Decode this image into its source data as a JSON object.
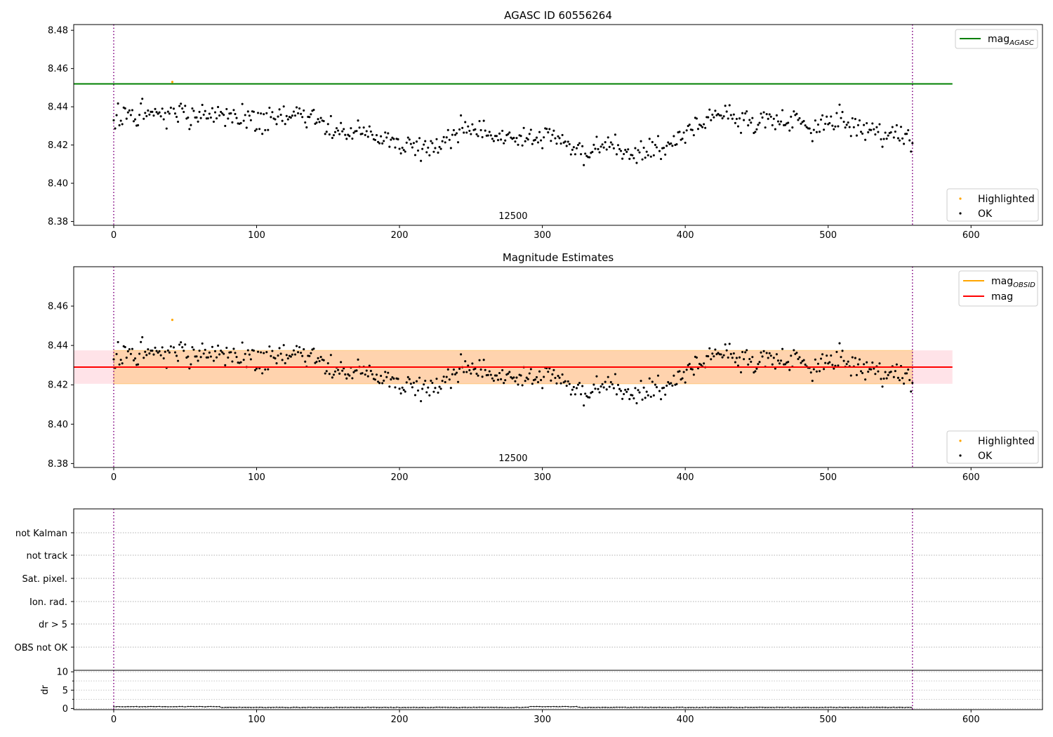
{
  "figure": {
    "title": "AGASC ID 60556264"
  },
  "chart_data": [
    {
      "type": "scatter",
      "title": "AGASC ID 60556264",
      "xlim": [
        -28,
        650
      ],
      "ylim": [
        8.378,
        8.483
      ],
      "xticks": [
        "0",
        "100",
        "200",
        "300",
        "400",
        "500",
        "600"
      ],
      "yticks": [
        "8.38",
        "8.40",
        "8.42",
        "8.44",
        "8.46",
        "8.48"
      ],
      "obsid_label": "12500",
      "obsid_boundaries": [
        0,
        559
      ],
      "reference_line": {
        "name": "mag$_{AGASC}$",
        "legend_main": "mag",
        "legend_sub": "AGASC",
        "value": 8.452,
        "x_range": [
          -28,
          587
        ],
        "color": "#008000"
      },
      "legend_points": [
        "Highlighted",
        "OK"
      ],
      "highlighted": [
        {
          "x": 41,
          "y": 8.453
        }
      ],
      "series": [
        {
          "name": "OK",
          "color": "#000000"
        }
      ]
    },
    {
      "type": "scatter",
      "title": "Magnitude Estimates",
      "xlim": [
        -28,
        650
      ],
      "ylim": [
        8.378,
        8.48
      ],
      "xticks": [
        "0",
        "100",
        "200",
        "300",
        "400",
        "500",
        "600"
      ],
      "yticks": [
        "8.38",
        "8.40",
        "8.42",
        "8.44",
        "8.46"
      ],
      "obsid_label": "12500",
      "obsid_boundaries": [
        0,
        559
      ],
      "lines": [
        {
          "name": "mag$_{OBSID}$",
          "legend_main": "mag",
          "legend_sub": "OBSID",
          "value": 8.429,
          "x_range": [
            0,
            559
          ],
          "color": "#ffa500"
        },
        {
          "name": "mag",
          "legend_main": "mag",
          "legend_sub": "",
          "value": 8.429,
          "x_range": [
            -28,
            587
          ],
          "color": "#ff0000"
        }
      ],
      "bands": [
        {
          "low": 8.4205,
          "high": 8.4375,
          "x_range": [
            -28,
            587
          ],
          "color": "#ffc0cb"
        },
        {
          "low": 8.4205,
          "high": 8.4375,
          "x_range": [
            0,
            559
          ],
          "color": "#ffa500"
        }
      ],
      "legend_points": [
        "Highlighted",
        "OK"
      ],
      "highlighted": [
        {
          "x": 41,
          "y": 8.453
        }
      ],
      "series": [
        {
          "name": "OK",
          "color": "#000000"
        }
      ]
    },
    {
      "type": "scatter",
      "title": "",
      "flag_labels": [
        "not Kalman",
        "not track",
        "Sat. pixel.",
        "Ion. rad.",
        "dr > 5",
        "OBS not OK"
      ],
      "obsid_boundaries": [
        0,
        559
      ],
      "xlim": [
        -28,
        650
      ]
    },
    {
      "type": "line",
      "title": "",
      "ylabel": "dr",
      "xlim": [
        -28,
        650
      ],
      "ylim": [
        -0.3,
        10.4
      ],
      "xticks": [
        "0",
        "100",
        "200",
        "300",
        "400",
        "500",
        "600"
      ],
      "yticks": [
        "0",
        "5",
        "10"
      ],
      "obsid_boundaries": [
        0,
        559
      ],
      "series": [
        {
          "name": "dr",
          "color": "#000000"
        }
      ]
    }
  ]
}
